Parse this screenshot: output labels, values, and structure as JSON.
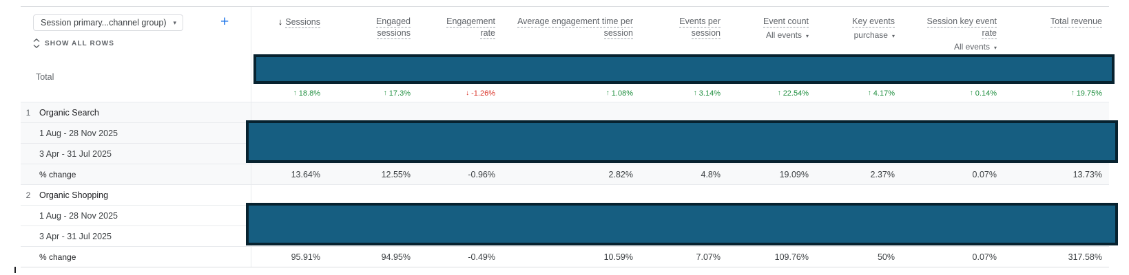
{
  "table": {
    "dimension_selector": {
      "label": "Session primary...channel group)"
    },
    "add_button_label": "+",
    "show_all_rows_label": "SHOW ALL ROWS",
    "columns": [
      {
        "id": "sessions",
        "lines": [
          "Sessions"
        ],
        "sorted_desc": true
      },
      {
        "id": "engaged-sessions",
        "lines": [
          "Engaged",
          "sessions"
        ]
      },
      {
        "id": "engagement-rate",
        "lines": [
          "Engagement",
          "rate"
        ]
      },
      {
        "id": "avg-engagement-time",
        "lines": [
          "Average engagement time per",
          "session"
        ]
      },
      {
        "id": "events-per-session",
        "lines": [
          "Events per",
          "session"
        ]
      },
      {
        "id": "event-count",
        "lines": [
          "Event count"
        ],
        "selector": "All events"
      },
      {
        "id": "key-events",
        "lines": [
          "Key events"
        ],
        "selector": "purchase"
      },
      {
        "id": "session-key-event-rate",
        "lines": [
          "Session key event",
          "rate"
        ],
        "selector": "All events"
      },
      {
        "id": "total-revenue",
        "lines": [
          "Total revenue"
        ]
      }
    ],
    "total_row": {
      "label": "Total",
      "values_redacted": true,
      "percent_change": [
        {
          "dir": "up",
          "value": "18.8%"
        },
        {
          "dir": "up",
          "value": "17.3%"
        },
        {
          "dir": "down",
          "value": "-1.26%"
        },
        {
          "dir": "up",
          "value": "1.08%"
        },
        {
          "dir": "up",
          "value": "3.14%"
        },
        {
          "dir": "up",
          "value": "22.54%"
        },
        {
          "dir": "up",
          "value": "4.17%"
        },
        {
          "dir": "up",
          "value": "0.14%"
        },
        {
          "dir": "up",
          "value": "19.75%"
        }
      ]
    },
    "groups": [
      {
        "index": "1",
        "channel": "Organic Search",
        "date_ranges": [
          "1 Aug - 28 Nov 2025",
          "3 Apr - 31 Jul 2025"
        ],
        "date_values_redacted": true,
        "percent_change_label": "% change",
        "percent_change": [
          "13.64%",
          "12.55%",
          "-0.96%",
          "2.82%",
          "4.8%",
          "19.09%",
          "2.37%",
          "0.07%",
          "13.73%"
        ]
      },
      {
        "index": "2",
        "channel": "Organic Shopping",
        "date_ranges": [
          "1 Aug - 28 Nov 2025",
          "3 Apr - 31 Jul 2025"
        ],
        "date_values_redacted": true,
        "percent_change_label": "% change",
        "percent_change": [
          "95.91%",
          "94.95%",
          "-0.49%",
          "10.59%",
          "7.07%",
          "109.76%",
          "50%",
          "0.07%",
          "317.58%"
        ]
      }
    ]
  },
  "colors": {
    "positive_green": "#1e8e3e",
    "negative_red": "#d93025",
    "accent_blue": "#1a73e8",
    "redaction_fill": "#165e81",
    "redaction_border": "#07222f"
  }
}
